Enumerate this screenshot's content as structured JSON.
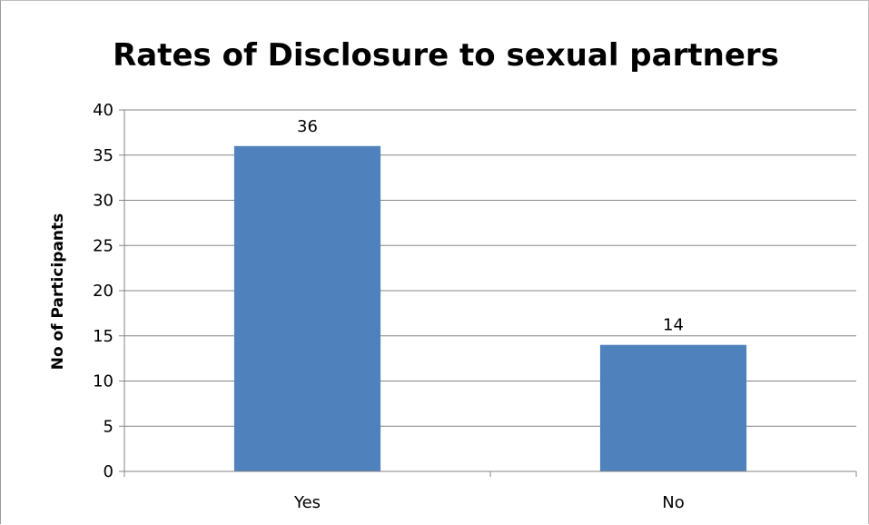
{
  "chart_data": {
    "type": "bar",
    "title": "Rates of Disclosure to sexual partners",
    "ylabel": "No of Participants",
    "xlabel": "",
    "categories": [
      "Yes",
      "No"
    ],
    "values": [
      36,
      14
    ],
    "ylim": [
      0,
      40
    ],
    "ytick_step": 5,
    "grid": "horizontal",
    "data_labels": true,
    "legend": "none",
    "bar_color": "#4F81BD",
    "gridline_color": "#868686"
  }
}
